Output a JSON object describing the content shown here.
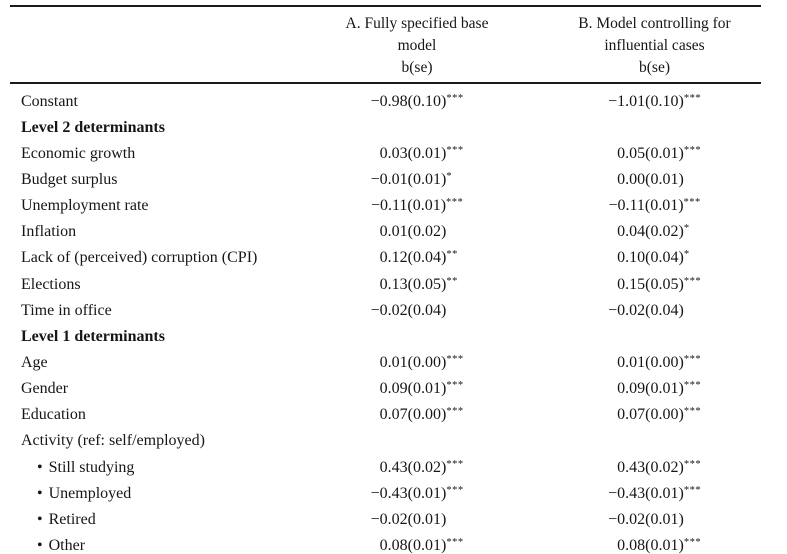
{
  "colors": {
    "text": "#161616",
    "rule": "#1b1b1b",
    "background": "#ffffff"
  },
  "table": {
    "columns": [
      {
        "lines": [
          "A. Fully specified base",
          "model",
          "b(se)"
        ]
      },
      {
        "lines": [
          "B. Model controlling for",
          "influential cases",
          "b(se)"
        ]
      }
    ],
    "bullet_glyph": "•",
    "rows": [
      {
        "type": "data",
        "indent": false,
        "label": "Constant",
        "a": {
          "sign": "−",
          "body": "0.98(0.10)",
          "stars": "***"
        },
        "b": {
          "sign": "−",
          "body": "1.01(0.10)",
          "stars": "***"
        }
      },
      {
        "type": "section",
        "indent": false,
        "label": "Level 2 determinants"
      },
      {
        "type": "data",
        "indent": false,
        "label": "Economic growth",
        "a": {
          "sign": "",
          "body": "0.03(0.01)",
          "stars": "***"
        },
        "b": {
          "sign": "",
          "body": "0.05(0.01)",
          "stars": "***"
        }
      },
      {
        "type": "data",
        "indent": false,
        "label": "Budget surplus",
        "a": {
          "sign": "−",
          "body": "0.01(0.01)",
          "stars": "*"
        },
        "b": {
          "sign": "",
          "body": "0.00(0.01)",
          "stars": ""
        }
      },
      {
        "type": "data",
        "indent": false,
        "label": "Unemployment rate",
        "a": {
          "sign": "−",
          "body": "0.11(0.01)",
          "stars": "***"
        },
        "b": {
          "sign": "−",
          "body": "0.11(0.01)",
          "stars": "***"
        }
      },
      {
        "type": "data",
        "indent": false,
        "label": "Inflation",
        "a": {
          "sign": "",
          "body": "0.01(0.02)",
          "stars": ""
        },
        "b": {
          "sign": "",
          "body": "0.04(0.02)",
          "stars": "*"
        }
      },
      {
        "type": "data",
        "indent": false,
        "label": "Lack of (perceived) corruption (CPI)",
        "a": {
          "sign": "",
          "body": "0.12(0.04)",
          "stars": "**"
        },
        "b": {
          "sign": "",
          "body": "0.10(0.04)",
          "stars": "*"
        }
      },
      {
        "type": "data",
        "indent": false,
        "label": "Elections",
        "a": {
          "sign": "",
          "body": "0.13(0.05)",
          "stars": "**"
        },
        "b": {
          "sign": "",
          "body": "0.15(0.05)",
          "stars": "***"
        }
      },
      {
        "type": "data",
        "indent": false,
        "label": "Time in office",
        "a": {
          "sign": "−",
          "body": "0.02(0.04)",
          "stars": ""
        },
        "b": {
          "sign": "−",
          "body": "0.02(0.04)",
          "stars": ""
        }
      },
      {
        "type": "section",
        "indent": false,
        "label": "Level 1 determinants"
      },
      {
        "type": "data",
        "indent": false,
        "label": "Age",
        "a": {
          "sign": "",
          "body": "0.01(0.00)",
          "stars": "***"
        },
        "b": {
          "sign": "",
          "body": "0.01(0.00)",
          "stars": "***"
        }
      },
      {
        "type": "data",
        "indent": false,
        "label": "Gender",
        "a": {
          "sign": "",
          "body": "0.09(0.01)",
          "stars": "***"
        },
        "b": {
          "sign": "",
          "body": "0.09(0.01)",
          "stars": "***"
        }
      },
      {
        "type": "data",
        "indent": false,
        "label": "Education",
        "a": {
          "sign": "",
          "body": "0.07(0.00)",
          "stars": "***"
        },
        "b": {
          "sign": "",
          "body": "0.07(0.00)",
          "stars": "***"
        }
      },
      {
        "type": "group",
        "indent": false,
        "label": "Activity (ref: self/employed)"
      },
      {
        "type": "data",
        "indent": true,
        "label": "Still studying",
        "a": {
          "sign": "",
          "body": "0.43(0.02)",
          "stars": "***"
        },
        "b": {
          "sign": "",
          "body": "0.43(0.02)",
          "stars": "***"
        }
      },
      {
        "type": "data",
        "indent": true,
        "label": "Unemployed",
        "a": {
          "sign": "−",
          "body": "0.43(0.01)",
          "stars": "***"
        },
        "b": {
          "sign": "−",
          "body": "0.43(0.01)",
          "stars": "***"
        }
      },
      {
        "type": "data",
        "indent": true,
        "label": "Retired",
        "a": {
          "sign": "−",
          "body": "0.02(0.01)",
          "stars": ""
        },
        "b": {
          "sign": "−",
          "body": "0.02(0.01)",
          "stars": ""
        }
      },
      {
        "type": "data",
        "indent": true,
        "label": "Other",
        "a": {
          "sign": "",
          "body": "0.08(0.01)",
          "stars": "***"
        },
        "b": {
          "sign": "",
          "body": "0.08(0.01)",
          "stars": "***"
        }
      }
    ]
  }
}
